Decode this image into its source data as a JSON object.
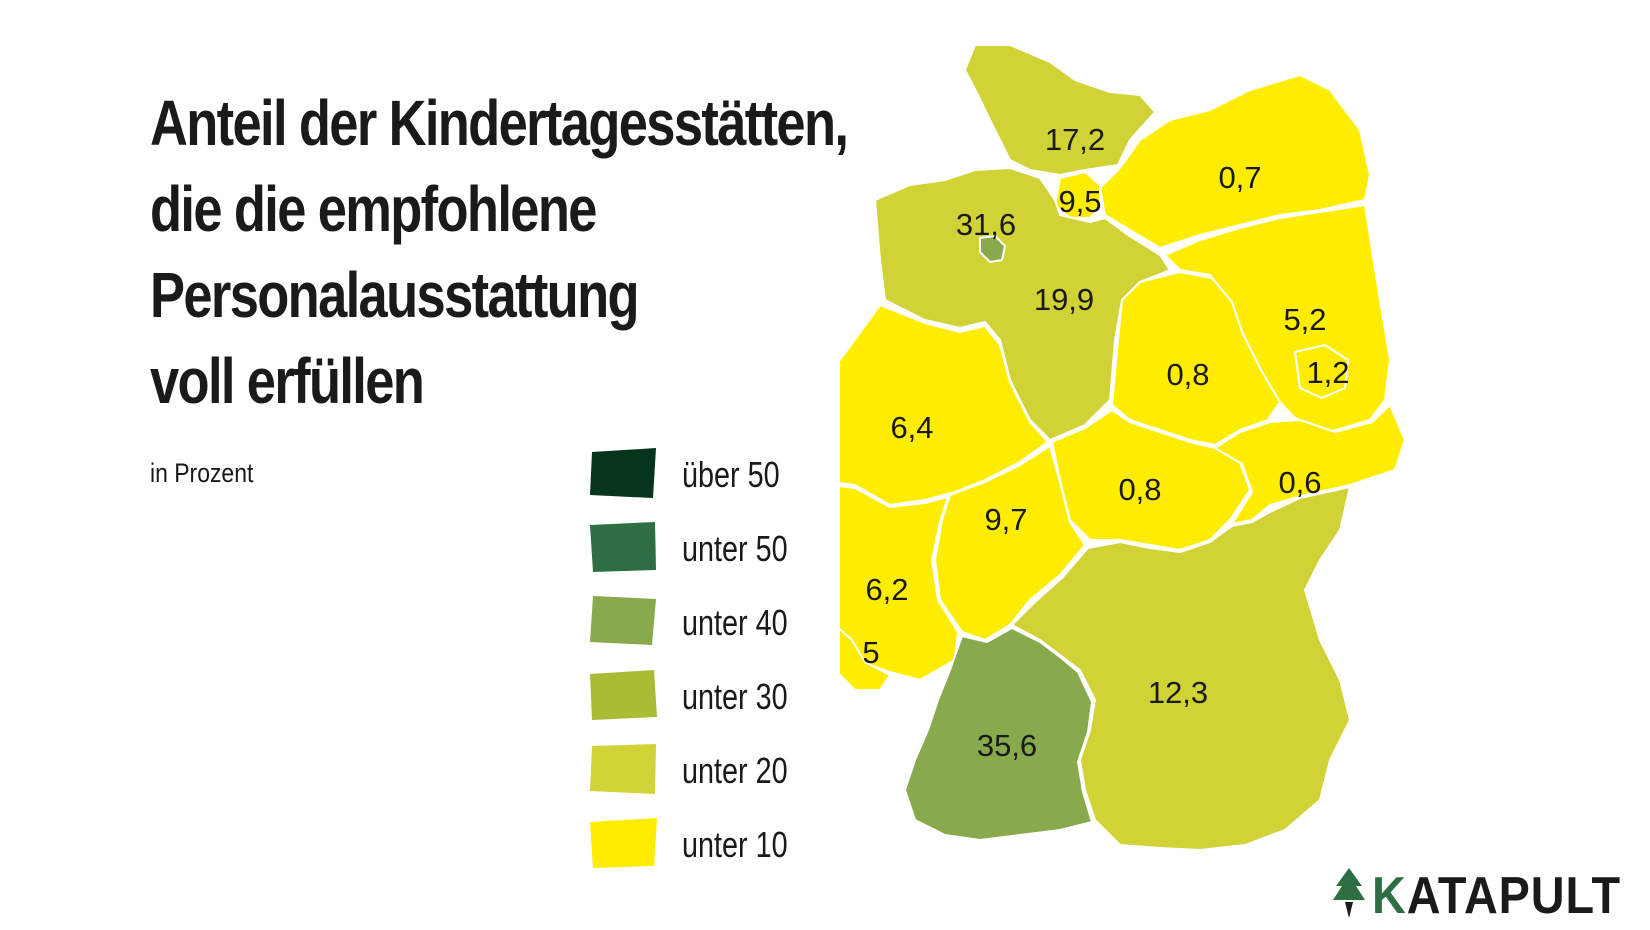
{
  "title_lines": [
    "Anteil der Kindertagesstätten,",
    "die die empfohlene",
    "Personalausstattung",
    "voll erfüllen"
  ],
  "subtitle": "in Prozent",
  "legend": [
    {
      "label": "über 50",
      "color": "#07351b"
    },
    {
      "label": "unter 50",
      "color": "#2d6e42"
    },
    {
      "label": "unter 40",
      "color": "#89a94d"
    },
    {
      "label": "unter 30",
      "color": "#a9bc36"
    },
    {
      "label": "unter 20",
      "color": "#d0d236"
    },
    {
      "label": "unter 10",
      "color": "#ffed00"
    }
  ],
  "regions": [
    {
      "label": "17,2",
      "value": 17.2,
      "color": "#d0d236"
    },
    {
      "label": "9,5",
      "value": 9.5,
      "color": "#ffed00"
    },
    {
      "label": "31,6",
      "value": 31.6,
      "color": "#89a94d"
    },
    {
      "label": "0,7",
      "value": 0.7,
      "color": "#ffed00"
    },
    {
      "label": "19,9",
      "value": 19.9,
      "color": "#d0d236"
    },
    {
      "label": "5,2",
      "value": 5.2,
      "color": "#ffed00"
    },
    {
      "label": "1,2",
      "value": 1.2,
      "color": "#ffed00"
    },
    {
      "label": "0,8",
      "value": 0.8,
      "color": "#ffed00"
    },
    {
      "label": "6,4",
      "value": 6.4,
      "color": "#ffed00"
    },
    {
      "label": "0,8",
      "value": 0.8,
      "color": "#ffed00"
    },
    {
      "label": "0,6",
      "value": 0.6,
      "color": "#ffed00"
    },
    {
      "label": "9,7",
      "value": 9.7,
      "color": "#ffed00"
    },
    {
      "label": "6,2",
      "value": 6.2,
      "color": "#ffed00"
    },
    {
      "label": "5",
      "value": 5,
      "color": "#ffed00"
    },
    {
      "label": "12,3",
      "value": 12.3,
      "color": "#d0d236"
    },
    {
      "label": "35,6",
      "value": 35.6,
      "color": "#89a94d"
    }
  ],
  "logo": {
    "prefix": "K",
    "rest": "ATAPULT",
    "icon": "tree-icon",
    "color": "#2d6e42"
  }
}
